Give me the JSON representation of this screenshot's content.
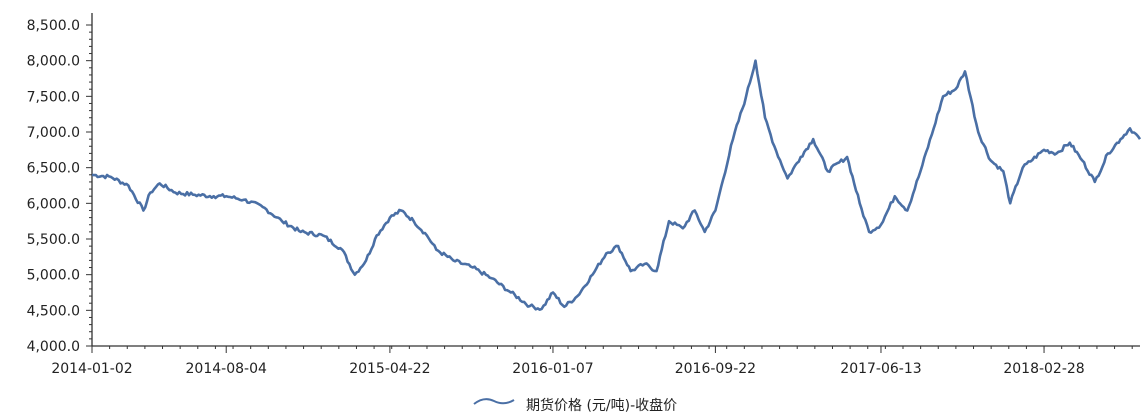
{
  "chart_data": {
    "type": "line",
    "title": "",
    "xlabel": "",
    "ylabel": "",
    "ylim": [
      4000,
      8500
    ],
    "y_ticks": [
      4000,
      4500,
      5000,
      5500,
      6000,
      6500,
      7000,
      7500,
      8000,
      8500
    ],
    "y_tick_labels": [
      "4,000.0",
      "4,500.0",
      "5,000.0",
      "5,500.0",
      "6,000.0",
      "6,500.0",
      "7,000.0",
      "7,500.0",
      "8,000.0",
      "8,500.0"
    ],
    "x_range": [
      "2014-01-02",
      "2018-07-31"
    ],
    "x_ticks": [
      "2014-01-02",
      "2014-08-04",
      "2015-04-22",
      "2016-01-07",
      "2016-09-22",
      "2017-06-13",
      "2018-02-28"
    ],
    "grid": false,
    "legend_position": "bottom",
    "series": [
      {
        "name": "期货价格 (元/吨)-收盘价",
        "color": "#4a6fa5",
        "points": [
          [
            "2014-01-02",
            6400
          ],
          [
            "2014-02-01",
            6370
          ],
          [
            "2014-03-01",
            6250
          ],
          [
            "2014-03-25",
            5900
          ],
          [
            "2014-04-05",
            6150
          ],
          [
            "2014-04-20",
            6280
          ],
          [
            "2014-05-15",
            6150
          ],
          [
            "2014-06-15",
            6120
          ],
          [
            "2014-07-15",
            6100
          ],
          [
            "2014-08-04",
            6100
          ],
          [
            "2014-09-01",
            6050
          ],
          [
            "2014-10-01",
            5950
          ],
          [
            "2014-11-01",
            5750
          ],
          [
            "2014-12-01",
            5600
          ],
          [
            "2015-01-05",
            5550
          ],
          [
            "2015-02-05",
            5350
          ],
          [
            "2015-02-25",
            5000
          ],
          [
            "2015-03-15",
            5200
          ],
          [
            "2015-04-01",
            5550
          ],
          [
            "2015-04-22",
            5800
          ],
          [
            "2015-05-10",
            5900
          ],
          [
            "2015-05-30",
            5750
          ],
          [
            "2015-06-20",
            5550
          ],
          [
            "2015-07-05",
            5350
          ],
          [
            "2015-08-01",
            5200
          ],
          [
            "2015-09-01",
            5100
          ],
          [
            "2015-10-01",
            4950
          ],
          [
            "2015-11-01",
            4750
          ],
          [
            "2015-12-01",
            4560
          ],
          [
            "2015-12-20",
            4520
          ],
          [
            "2016-01-07",
            4750
          ],
          [
            "2016-01-25",
            4550
          ],
          [
            "2016-02-15",
            4700
          ],
          [
            "2016-03-10",
            5000
          ],
          [
            "2016-04-01",
            5300
          ],
          [
            "2016-04-20",
            5400
          ],
          [
            "2016-05-10",
            5050
          ],
          [
            "2016-06-01",
            5150
          ],
          [
            "2016-06-20",
            5050
          ],
          [
            "2016-07-10",
            5750
          ],
          [
            "2016-08-01",
            5650
          ],
          [
            "2016-08-20",
            5900
          ],
          [
            "2016-09-05",
            5600
          ],
          [
            "2016-09-22",
            5900
          ],
          [
            "2016-10-20",
            6900
          ],
          [
            "2016-11-10",
            7500
          ],
          [
            "2016-11-25",
            8000
          ],
          [
            "2016-12-10",
            7200
          ],
          [
            "2016-12-25",
            6800
          ],
          [
            "2017-01-15",
            6350
          ],
          [
            "2017-02-05",
            6650
          ],
          [
            "2017-02-25",
            6900
          ],
          [
            "2017-03-20",
            6450
          ],
          [
            "2017-04-20",
            6650
          ],
          [
            "2017-05-10",
            6000
          ],
          [
            "2017-05-25",
            5600
          ],
          [
            "2017-06-13",
            5700
          ],
          [
            "2017-07-05",
            6100
          ],
          [
            "2017-07-25",
            5900
          ],
          [
            "2017-08-15",
            6450
          ],
          [
            "2017-09-05",
            7050
          ],
          [
            "2017-09-20",
            7500
          ],
          [
            "2017-10-10",
            7600
          ],
          [
            "2017-10-25",
            7850
          ],
          [
            "2017-11-15",
            7000
          ],
          [
            "2017-12-05",
            6600
          ],
          [
            "2017-12-25",
            6450
          ],
          [
            "2018-01-05",
            6000
          ],
          [
            "2018-01-25",
            6500
          ],
          [
            "2018-02-28",
            6750
          ],
          [
            "2018-03-20",
            6700
          ],
          [
            "2018-04-10",
            6850
          ],
          [
            "2018-04-30",
            6600
          ],
          [
            "2018-05-20",
            6300
          ],
          [
            "2018-06-10",
            6700
          ],
          [
            "2018-06-30",
            6900
          ],
          [
            "2018-07-15",
            7050
          ],
          [
            "2018-07-31",
            6900
          ]
        ]
      }
    ]
  }
}
